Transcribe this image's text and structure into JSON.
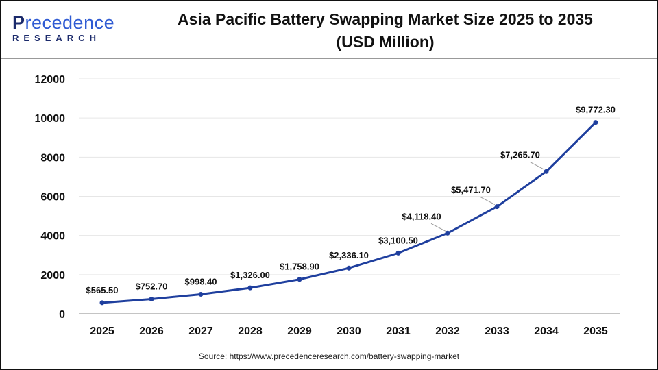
{
  "logo": {
    "line1_first": "P",
    "line1_rest": "recedence",
    "line2": "RESEARCH"
  },
  "title_line1": "Asia Pacific Battery Swapping Market Size 2025 to 2035",
  "title_line2": "(USD Million)",
  "source": "Source: https://www.precedenceresearch.com/battery-swapping-market",
  "chart_data": {
    "type": "line",
    "title": "Asia Pacific Battery Swapping Market Size 2025 to 2035 (USD Million)",
    "categories": [
      "2025",
      "2026",
      "2027",
      "2028",
      "2029",
      "2030",
      "2031",
      "2032",
      "2033",
      "2034",
      "2035"
    ],
    "values": [
      565.5,
      752.7,
      998.4,
      1326.0,
      1758.9,
      2336.1,
      3100.5,
      4118.4,
      5471.7,
      7265.7,
      9772.3
    ],
    "data_labels": [
      "$565.50",
      "$752.70",
      "$998.40",
      "$1,326.00",
      "$1,758.90",
      "$2,336.10",
      "$3,100.50",
      "$4,118.40",
      "$5,471.70",
      "$7,265.70",
      "$9,772.30"
    ],
    "yticks": [
      "0",
      "2000",
      "4000",
      "6000",
      "8000",
      "10000",
      "12000"
    ],
    "ylim": [
      0,
      12000
    ],
    "grid": true,
    "legend": "none",
    "line_color": "#1f3f9e"
  }
}
